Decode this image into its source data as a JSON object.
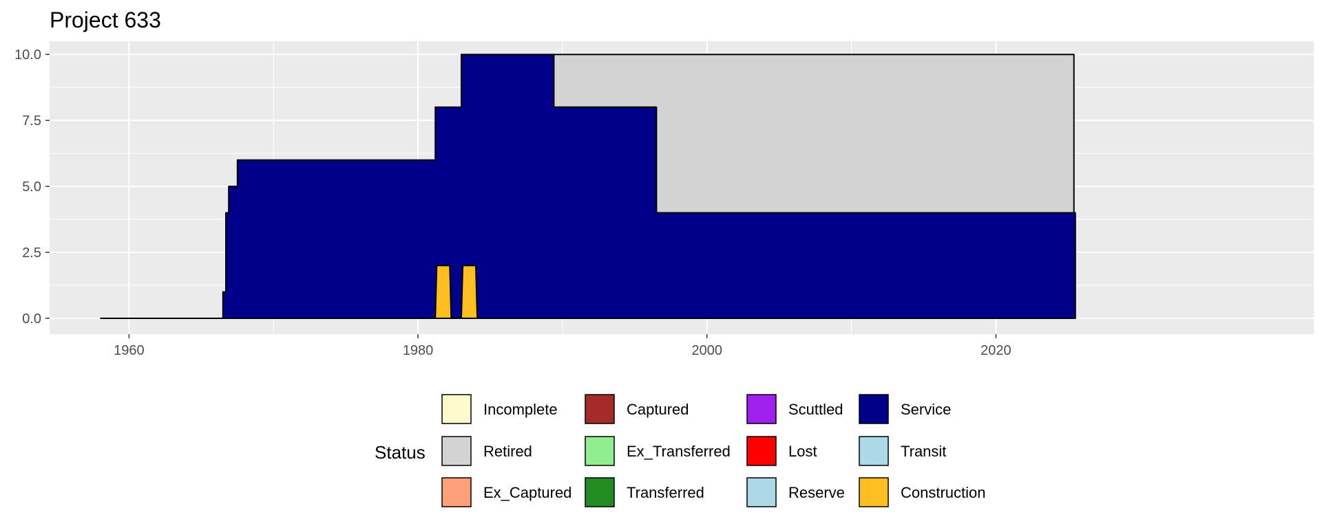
{
  "chart_data": {
    "type": "area",
    "title": "Project 633",
    "xlabel": "",
    "ylabel": "",
    "xlim": [
      1954.5,
      2042
    ],
    "ylim": [
      -0.6,
      10.5
    ],
    "x_ticks": [
      1960,
      1980,
      2000,
      2020
    ],
    "x_tick_labels": [
      "1960",
      "1980",
      "2000",
      "2020"
    ],
    "y_ticks": [
      0,
      2.5,
      5,
      7.5,
      10
    ],
    "y_tick_labels": [
      "0.0",
      "2.5",
      "5.0",
      "7.5",
      "10.0"
    ],
    "grid": true,
    "legend_position": "bottom",
    "legend_title": "Status",
    "legend_items": [
      {
        "label": "Incomplete",
        "color": "#FFFACD"
      },
      {
        "label": "Retired",
        "color": "#D3D3D3"
      },
      {
        "label": "Ex_Captured",
        "color": "#FFA07A"
      },
      {
        "label": "Captured",
        "color": "#A52A2A"
      },
      {
        "label": "Ex_Transferred",
        "color": "#90EE90"
      },
      {
        "label": "Transferred",
        "color": "#228B22"
      },
      {
        "label": "Scuttled",
        "color": "#A020F0"
      },
      {
        "label": "Lost",
        "color": "#FF0000"
      },
      {
        "label": "Reserve",
        "color": "#ADD8E6"
      },
      {
        "label": "Service",
        "color": "#00008B"
      },
      {
        "label": "Transit",
        "color": "#ADD8E6"
      },
      {
        "label": "Construction",
        "color": "#FFBF20"
      }
    ],
    "baseline": {
      "x_start": 1958,
      "x_end": 2025.5
    },
    "series": [
      {
        "name": "Retired",
        "color": "#D3D3D3",
        "points": [
          [
            1989.4,
            8
          ],
          [
            1989.4,
            10
          ],
          [
            2025.4,
            10
          ],
          [
            2025.4,
            4
          ],
          [
            1996.5,
            4
          ],
          [
            1996.5,
            8
          ]
        ]
      },
      {
        "name": "Service",
        "color": "#00008B",
        "points": [
          [
            1966.5,
            0
          ],
          [
            1966.5,
            1
          ],
          [
            1966.7,
            1
          ],
          [
            1966.7,
            4
          ],
          [
            1966.9,
            4
          ],
          [
            1966.9,
            5
          ],
          [
            1967.5,
            5
          ],
          [
            1967.5,
            6
          ],
          [
            1981.2,
            6
          ],
          [
            1981.2,
            8
          ],
          [
            1983.0,
            8
          ],
          [
            1983.0,
            10
          ],
          [
            1989.4,
            10
          ],
          [
            1989.4,
            8
          ],
          [
            1996.5,
            8
          ],
          [
            1996.5,
            4
          ],
          [
            2025.5,
            4
          ],
          [
            2025.5,
            0
          ]
        ]
      },
      {
        "name": "Construction",
        "color": "#FFBF20",
        "points": [
          [
            1981.2,
            0
          ],
          [
            1981.3,
            2
          ],
          [
            1982.2,
            2
          ],
          [
            1982.3,
            0
          ]
        ]
      },
      {
        "name": "Construction",
        "color": "#FFBF20",
        "points": [
          [
            1983.0,
            0
          ],
          [
            1983.1,
            2
          ],
          [
            1984.0,
            2
          ],
          [
            1984.1,
            0
          ]
        ]
      }
    ]
  }
}
